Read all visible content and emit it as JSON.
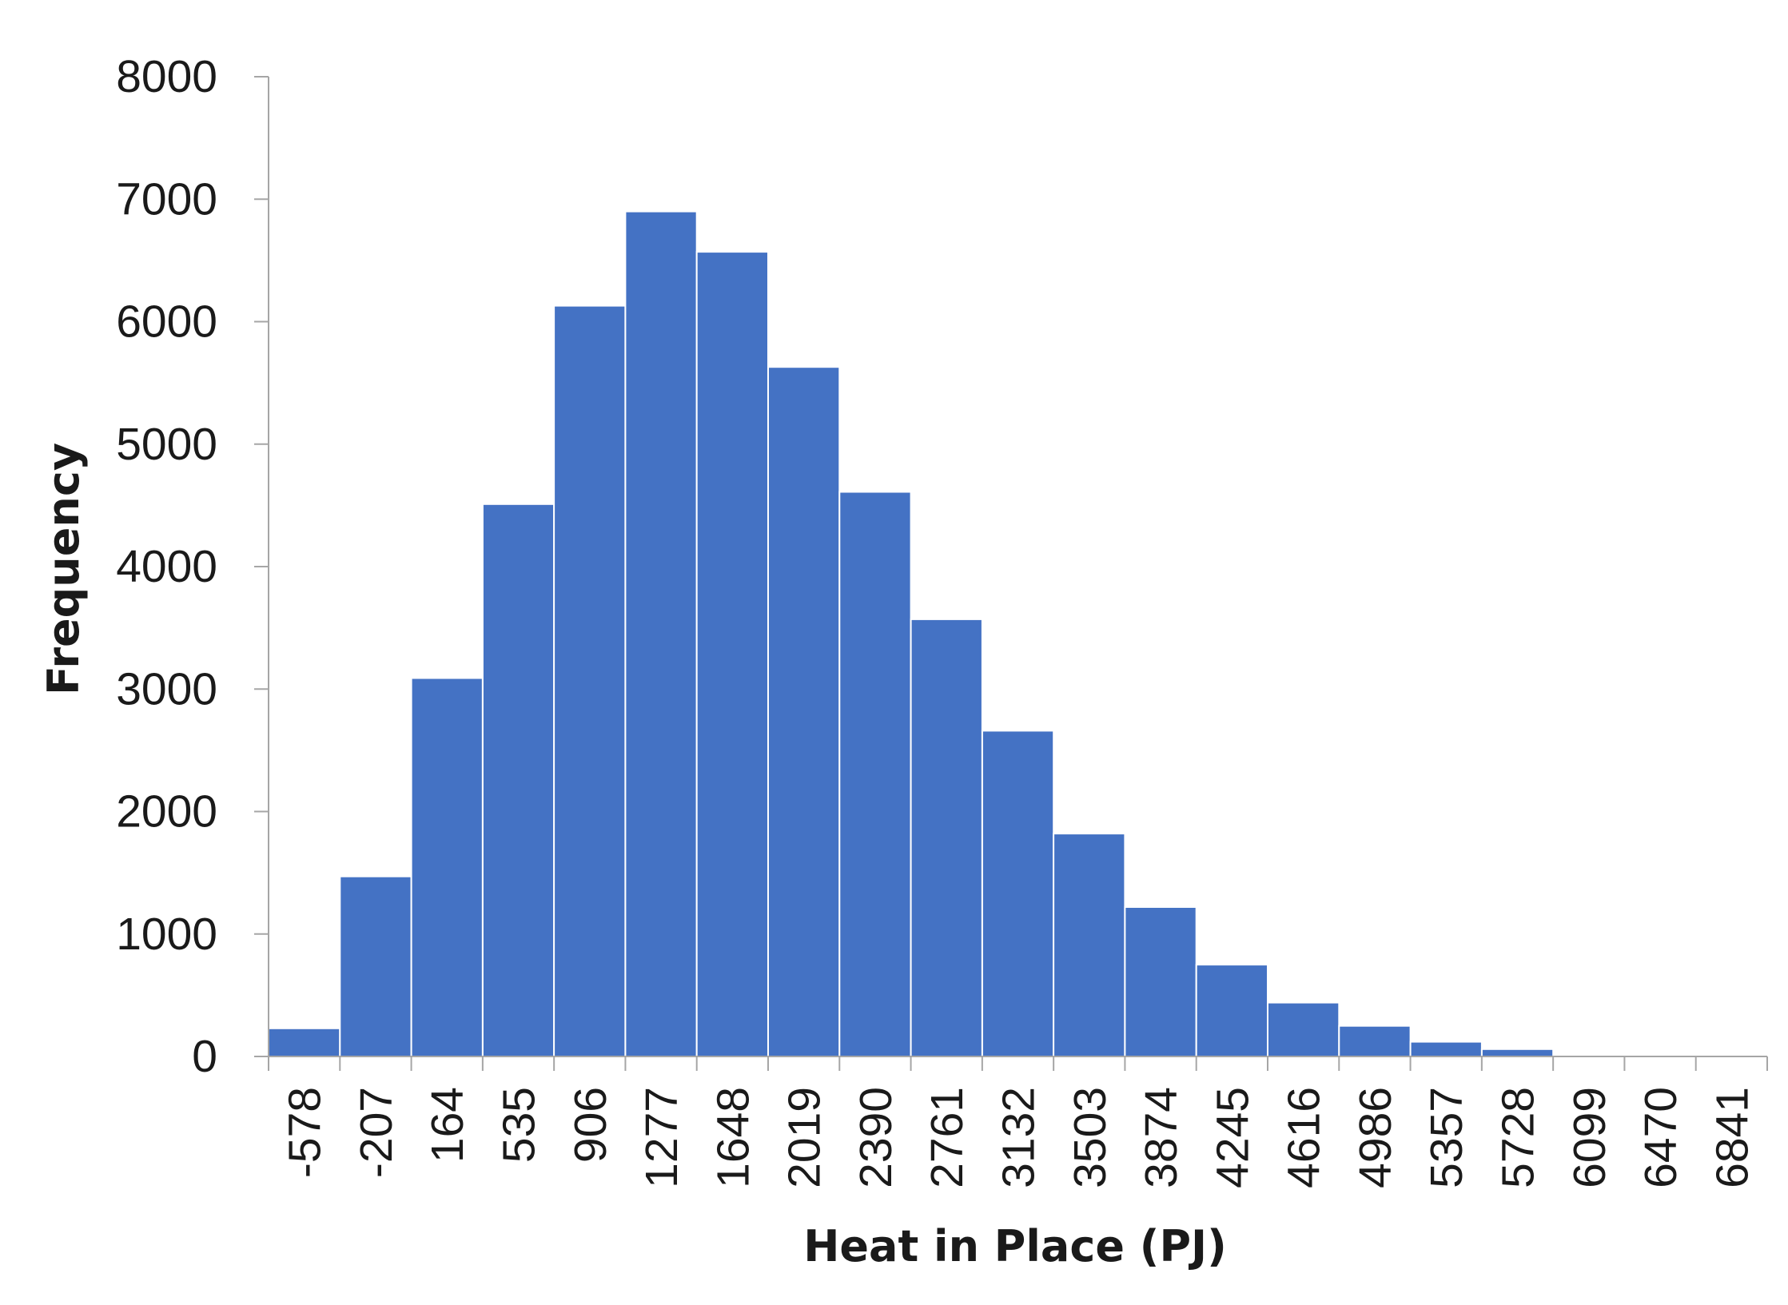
{
  "chart_data": {
    "type": "bar",
    "title": "",
    "xlabel": "Heat in Place (PJ)",
    "ylabel": "Frequency",
    "categories": [
      "-578",
      "-207",
      "164",
      "535",
      "906",
      "1277",
      "1648",
      "2019",
      "2390",
      "2761",
      "3132",
      "3503",
      "3874",
      "4245",
      "4616",
      "4986",
      "5357",
      "5728",
      "6099",
      "6470",
      "6841"
    ],
    "values": [
      230,
      1470,
      3090,
      4510,
      6130,
      6900,
      6570,
      5630,
      4610,
      3570,
      2660,
      1820,
      1220,
      750,
      440,
      250,
      120,
      60,
      0,
      0,
      0
    ],
    "y_ticks": [
      "0",
      "1000",
      "2000",
      "3000",
      "4000",
      "5000",
      "6000",
      "7000",
      "8000"
    ],
    "ylim": [
      0,
      8000
    ],
    "grid": false,
    "legend": "none",
    "bar_color": "#4472C4",
    "axis_color": "#A6A6A6"
  }
}
